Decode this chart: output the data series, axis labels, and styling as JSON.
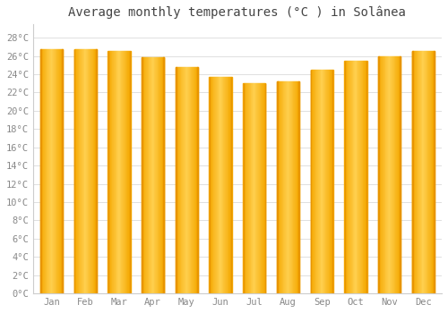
{
  "title": "Average monthly temperatures (°C ) in Solânea",
  "months": [
    "Jan",
    "Feb",
    "Mar",
    "Apr",
    "May",
    "Jun",
    "Jul",
    "Aug",
    "Sep",
    "Oct",
    "Nov",
    "Dec"
  ],
  "values": [
    26.7,
    26.7,
    26.5,
    25.9,
    24.8,
    23.7,
    23.0,
    23.2,
    24.5,
    25.5,
    26.0,
    26.5
  ],
  "bar_color_center": "#FFD050",
  "bar_color_edge": "#F5A800",
  "background_color": "#ffffff",
  "grid_color": "#e0e0e0",
  "yticks": [
    0,
    2,
    4,
    6,
    8,
    10,
    12,
    14,
    16,
    18,
    20,
    22,
    24,
    26,
    28
  ],
  "ylim": [
    0,
    29.5
  ],
  "title_fontsize": 10,
  "tick_fontsize": 7.5,
  "title_color": "#444444",
  "tick_color": "#888888",
  "bar_width": 0.65,
  "figsize": [
    5.0,
    3.5
  ],
  "dpi": 100
}
